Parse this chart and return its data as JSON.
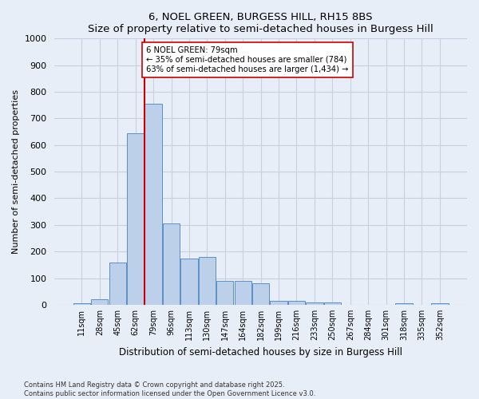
{
  "title": "6, NOEL GREEN, BURGESS HILL, RH15 8BS",
  "subtitle": "Size of property relative to semi-detached houses in Burgess Hill",
  "xlabel": "Distribution of semi-detached houses by size in Burgess Hill",
  "ylabel": "Number of semi-detached properties",
  "categories": [
    "11sqm",
    "28sqm",
    "45sqm",
    "62sqm",
    "79sqm",
    "96sqm",
    "113sqm",
    "130sqm",
    "147sqm",
    "164sqm",
    "182sqm",
    "199sqm",
    "216sqm",
    "233sqm",
    "250sqm",
    "267sqm",
    "284sqm",
    "301sqm",
    "318sqm",
    "335sqm",
    "352sqm"
  ],
  "values": [
    5,
    20,
    160,
    645,
    755,
    305,
    175,
    180,
    90,
    90,
    80,
    15,
    15,
    10,
    10,
    0,
    0,
    0,
    5,
    0,
    5
  ],
  "bar_color": "#bdd0ea",
  "bar_edge_color": "#5b8fc9",
  "vline_color": "#cc0000",
  "annotation_text": "6 NOEL GREEN: 79sqm\n← 35% of semi-detached houses are smaller (784)\n63% of semi-detached houses are larger (1,434) →",
  "annotation_box_color": "#ffffff",
  "annotation_box_edge": "#cc0000",
  "ylim": [
    0,
    1000
  ],
  "yticks": [
    0,
    100,
    200,
    300,
    400,
    500,
    600,
    700,
    800,
    900,
    1000
  ],
  "footer": "Contains HM Land Registry data © Crown copyright and database right 2025.\nContains public sector information licensed under the Open Government Licence v3.0.",
  "bg_color": "#e8eef8",
  "grid_color": "#c8d0e0"
}
